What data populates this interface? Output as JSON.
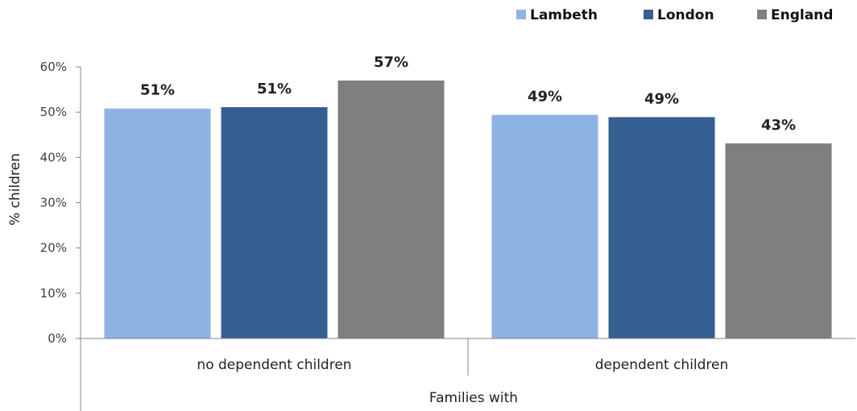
{
  "chart_data": {
    "type": "bar",
    "categories": [
      "no dependent children",
      "dependent children"
    ],
    "series": [
      {
        "name": "Lambeth",
        "color": "#8db3e2",
        "values": [
          50.8,
          49.4
        ],
        "labels": [
          "51%",
          "49%"
        ]
      },
      {
        "name": "London",
        "color": "#365f91",
        "values": [
          51.1,
          48.9
        ],
        "labels": [
          "51%",
          "49%"
        ]
      },
      {
        "name": "England",
        "color": "#7f7f7f",
        "values": [
          57.0,
          43.1
        ],
        "labels": [
          "57%",
          "43%"
        ]
      }
    ],
    "xlabel": "Families with",
    "ylabel": "% children",
    "ylim": [
      0,
      60
    ],
    "yticks": [
      "0%",
      "10%",
      "20%",
      "30%",
      "40%",
      "50%",
      "60%"
    ],
    "grid": false,
    "legend_position": "top-right"
  }
}
